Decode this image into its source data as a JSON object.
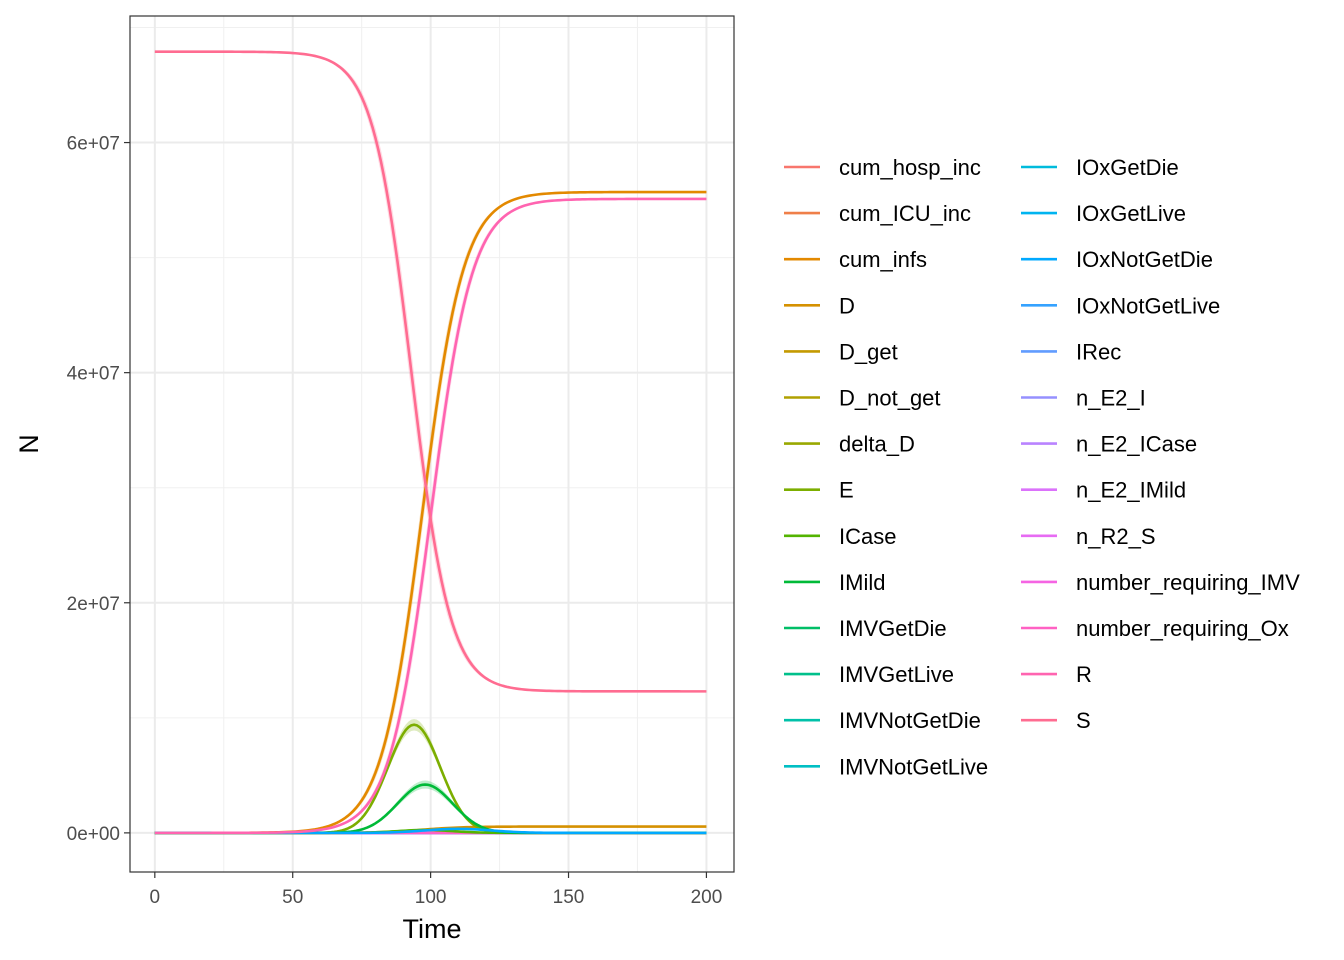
{
  "chart_data": {
    "type": "line",
    "xlabel": "Time",
    "ylabel": "N",
    "xlim": [
      -9,
      210
    ],
    "ylim": [
      -3400000,
      71000000
    ],
    "x_ticks": [
      {
        "value": 0,
        "label": "0"
      },
      {
        "value": 50,
        "label": "50"
      },
      {
        "value": 100,
        "label": "100"
      },
      {
        "value": 150,
        "label": "150"
      },
      {
        "value": 200,
        "label": "200"
      }
    ],
    "y_ticks": [
      {
        "value": 0,
        "label": "0e+00"
      },
      {
        "value": 20000000,
        "label": "2e+07"
      },
      {
        "value": 40000000,
        "label": "4e+07"
      },
      {
        "value": 60000000,
        "label": "6e+07"
      }
    ],
    "grid": true,
    "legend_position": "right",
    "series": [
      {
        "name": "cum_hosp_inc",
        "color": "#F8766D",
        "shape": "zero"
      },
      {
        "name": "cum_ICU_inc",
        "color": "#EF7F49",
        "shape": "zero"
      },
      {
        "name": "cum_infs",
        "color": "#E38900",
        "shape": "logistic_up",
        "params": {
          "start": 0,
          "end": 55700000,
          "mid": 97,
          "scale": 7.5,
          "band": 1400000
        }
      },
      {
        "name": "D",
        "color": "#D59100",
        "shape": "logistic_up",
        "params": {
          "start": 0,
          "end": 550000,
          "mid": 97,
          "scale": 7.5,
          "band": 0
        }
      },
      {
        "name": "D_get",
        "color": "#C49A00",
        "shape": "zero"
      },
      {
        "name": "D_not_get",
        "color": "#B0A100",
        "shape": "zero"
      },
      {
        "name": "delta_D",
        "color": "#99A800",
        "shape": "zero"
      },
      {
        "name": "E",
        "color": "#7CAE00",
        "shape": "gaussian",
        "params": {
          "peak": 9400000,
          "center": 94,
          "width": 9.5,
          "band": 500000
        }
      },
      {
        "name": "ICase",
        "color": "#53B400",
        "shape": "gaussian",
        "params": {
          "peak": 250000,
          "center": 98,
          "width": 10,
          "band": 0
        }
      },
      {
        "name": "IMild",
        "color": "#00BA38",
        "shape": "gaussian",
        "params": {
          "peak": 4200000,
          "center": 98,
          "width": 10,
          "band": 350000
        }
      },
      {
        "name": "IMVGetDie",
        "color": "#00BE67",
        "shape": "zero"
      },
      {
        "name": "IMVGetLive",
        "color": "#00C08B",
        "shape": "zero"
      },
      {
        "name": "IMVNotGetDie",
        "color": "#00C1A9",
        "shape": "zero"
      },
      {
        "name": "IMVNotGetLive",
        "color": "#00BFC4",
        "shape": "zero"
      },
      {
        "name": "IOxGetDie",
        "color": "#00BBDC",
        "shape": "zero"
      },
      {
        "name": "IOxGetLive",
        "color": "#00B4F0",
        "shape": "zero"
      },
      {
        "name": "IOxNotGetDie",
        "color": "#00A9FF",
        "shape": "gaussian",
        "params": {
          "peak": 350000,
          "center": 110,
          "width": 12,
          "band": 0
        }
      },
      {
        "name": "IOxNotGetLive",
        "color": "#35A2FF",
        "shape": "zero"
      },
      {
        "name": "IRec",
        "color": "#619CFF",
        "shape": "zero"
      },
      {
        "name": "n_E2_I",
        "color": "#9590FF",
        "shape": "zero"
      },
      {
        "name": "n_E2_ICase",
        "color": "#B983FF",
        "shape": "zero"
      },
      {
        "name": "n_E2_IMild",
        "color": "#DB72FB",
        "shape": "zero"
      },
      {
        "name": "n_R2_S",
        "color": "#E76BF3",
        "shape": "zero"
      },
      {
        "name": "number_requiring_IMV",
        "color": "#F564E3",
        "shape": "zero"
      },
      {
        "name": "number_requiring_Ox",
        "color": "#FF61C3",
        "shape": "zero"
      },
      {
        "name": "R",
        "color": "#FF64B0",
        "shape": "logistic_up",
        "params": {
          "start": 0,
          "end": 55100000,
          "mid": 100,
          "scale": 7.5,
          "band": 1400000
        }
      },
      {
        "name": "S",
        "color": "#FF6C91",
        "shape": "logistic_down",
        "params": {
          "start": 67900000,
          "end": 12300000,
          "mid": 93,
          "scale": 7,
          "band": 1800000
        }
      }
    ]
  }
}
